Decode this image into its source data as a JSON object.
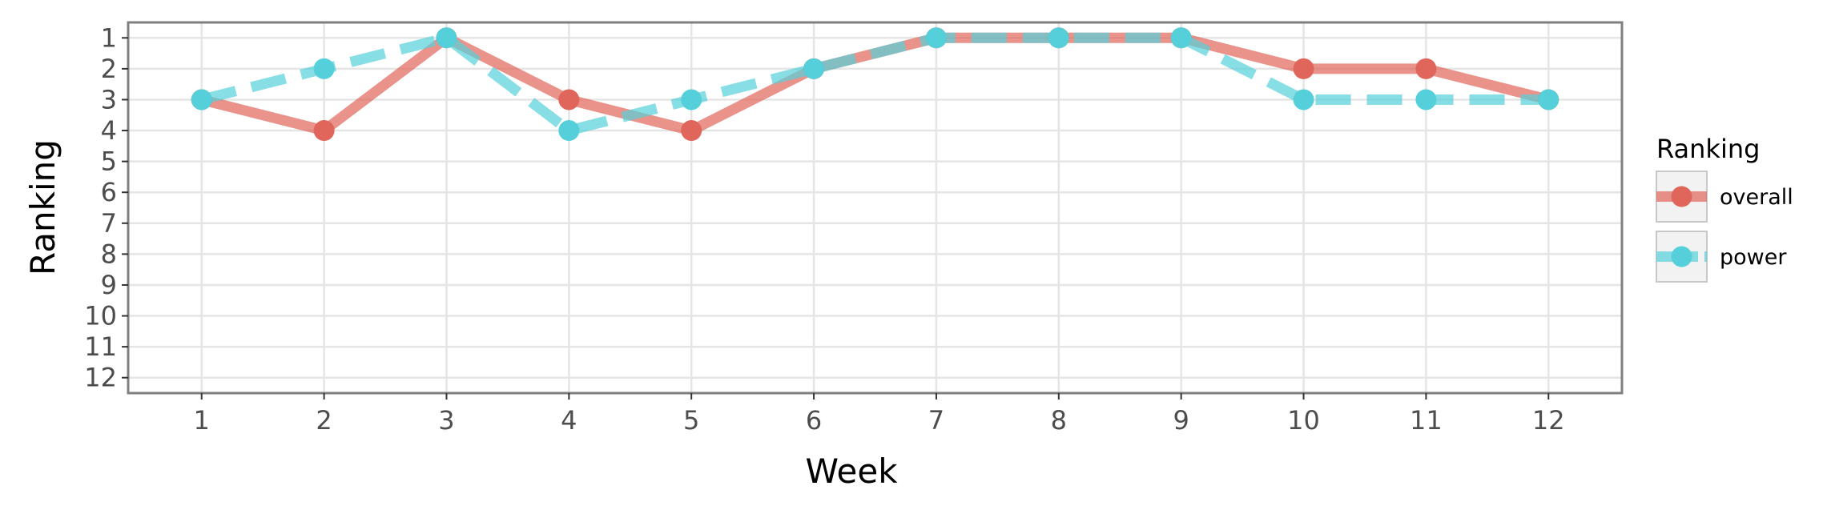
{
  "chart_data": {
    "type": "line",
    "xlabel": "Week",
    "ylabel": "Ranking",
    "x": [
      1,
      2,
      3,
      4,
      5,
      6,
      7,
      8,
      9,
      10,
      11,
      12
    ],
    "xlim": [
      0.4,
      12.6
    ],
    "ylim": [
      12.5,
      0.5
    ],
    "y_reversed": true,
    "x_ticks": [
      "1",
      "2",
      "3",
      "4",
      "5",
      "6",
      "7",
      "8",
      "9",
      "10",
      "11",
      "12"
    ],
    "y_ticks": [
      "1",
      "2",
      "3",
      "4",
      "5",
      "6",
      "7",
      "8",
      "9",
      "10",
      "11",
      "12"
    ],
    "grid": true,
    "legend": {
      "title": "Ranking",
      "position": "right"
    },
    "series": [
      {
        "name": "overall",
        "color": "#E0655A",
        "line_style": "solid",
        "values": [
          3,
          4,
          1,
          3,
          4,
          2,
          1,
          1,
          1,
          2,
          2,
          3
        ]
      },
      {
        "name": "power",
        "color": "#55D0DA",
        "line_style": "dashed",
        "values": [
          3,
          2,
          1,
          4,
          3,
          2,
          1,
          1,
          1,
          3,
          3,
          3
        ]
      }
    ]
  }
}
